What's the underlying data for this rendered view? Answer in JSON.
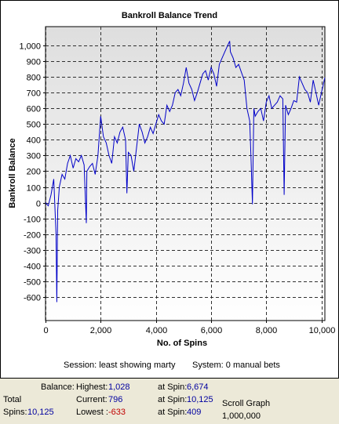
{
  "chart_data": {
    "type": "line",
    "title": "Bankroll Balance Trend",
    "xlabel": "No. of Spins",
    "ylabel": "Bankroll Balance",
    "xlim": [
      0,
      10125
    ],
    "ylim": [
      -750,
      1120
    ],
    "x_ticks": [
      0,
      2000,
      4000,
      6000,
      8000,
      10000
    ],
    "x_tick_labels": [
      "0",
      "2,000",
      "4,000",
      "6,000",
      "8,000",
      "10,000"
    ],
    "y_ticks": [
      -600,
      -500,
      -400,
      -300,
      -200,
      -100,
      0,
      100,
      200,
      300,
      400,
      500,
      600,
      700,
      800,
      900,
      1000
    ],
    "y_tick_labels": [
      "-600",
      "-500",
      "-400",
      "-300",
      "-200",
      "-100",
      "0",
      "100",
      "200",
      "300",
      "400",
      "500",
      "600",
      "700",
      "800",
      "900",
      "1,000"
    ],
    "grid": true,
    "line_color": "#0000c8",
    "series": [
      {
        "x": [
          0,
          100,
          200,
          300,
          380,
          409,
          440,
          500,
          600,
          700,
          800,
          900,
          1000,
          1100,
          1200,
          1300,
          1400,
          1480,
          1500,
          1600,
          1700,
          1800,
          1900,
          2000,
          2100,
          2200,
          2300,
          2400,
          2500,
          2600,
          2700,
          2800,
          2900,
          2950,
          3000,
          3100,
          3200,
          3300,
          3400,
          3500,
          3600,
          3700,
          3800,
          3900,
          4000,
          4100,
          4200,
          4300,
          4400,
          4500,
          4600,
          4700,
          4800,
          4900,
          5000,
          5100,
          5200,
          5300,
          5400,
          5500,
          5600,
          5700,
          5800,
          5900,
          6000,
          6100,
          6200,
          6300,
          6400,
          6500,
          6600,
          6674,
          6700,
          6800,
          6900,
          7000,
          7100,
          7200,
          7300,
          7400,
          7450,
          7500,
          7550,
          7600,
          7700,
          7800,
          7900,
          8000,
          8100,
          8200,
          8300,
          8400,
          8500,
          8600,
          8650,
          8700,
          8800,
          8900,
          9000,
          9100,
          9200,
          9300,
          9400,
          9500,
          9600,
          9700,
          9800,
          9900,
          10000,
          10125
        ],
        "y": [
          0,
          -20,
          50,
          150,
          -200,
          -633,
          -50,
          100,
          180,
          150,
          250,
          300,
          220,
          280,
          260,
          300,
          240,
          -130,
          200,
          230,
          250,
          180,
          300,
          550,
          420,
          380,
          300,
          250,
          420,
          380,
          450,
          480,
          400,
          60,
          320,
          300,
          200,
          350,
          500,
          450,
          380,
          420,
          480,
          440,
          500,
          560,
          520,
          500,
          620,
          580,
          620,
          700,
          720,
          680,
          760,
          860,
          760,
          720,
          650,
          700,
          760,
          820,
          840,
          780,
          860,
          820,
          740,
          880,
          920,
          960,
          1000,
          1028,
          960,
          920,
          860,
          880,
          830,
          780,
          600,
          520,
          280,
          -10,
          600,
          550,
          580,
          600,
          520,
          640,
          680,
          600,
          620,
          640,
          680,
          660,
          50,
          620,
          560,
          600,
          650,
          640,
          800,
          760,
          720,
          700,
          640,
          780,
          700,
          620,
          700,
          796
        ]
      }
    ]
  },
  "footer": {
    "session": "Session: least showing marty",
    "system": "System: 0 manual bets"
  },
  "stats": {
    "total_label": "Total",
    "spins_label": "Spins:",
    "spins_value": "10,125",
    "balance_label": "Balance:",
    "highest_label": "Highest:",
    "highest_value": "1,028",
    "current_label": "Current:",
    "current_value": "796",
    "lowest_label": "Lowest :",
    "lowest_value": "-633",
    "at_spin_label": "at Spin:",
    "highest_at": "6,674",
    "current_at": "10,125",
    "lowest_at": "409",
    "scroll_label": "Scroll Graph",
    "scroll_value": "1,000,000"
  }
}
